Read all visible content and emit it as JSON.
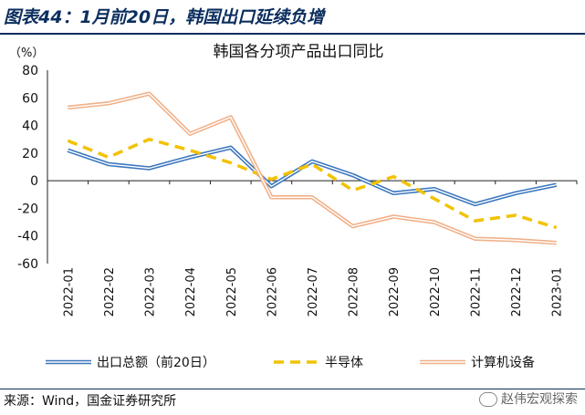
{
  "header": {
    "title": "图表44：1月前20日，韩国出口延续负增"
  },
  "footer": {
    "source": "来源：Wind，国金证券研究所",
    "watermark": "赵伟宏观探索"
  },
  "chart_data": {
    "type": "line",
    "title": "韩国各分项产品出口同比",
    "ylabel": "（%）",
    "xlabel": "",
    "ylim": [
      -60,
      80
    ],
    "yticks": [
      -60,
      -40,
      -20,
      0,
      20,
      40,
      60,
      80
    ],
    "grid": false,
    "legend": "bottom",
    "categories": [
      "2022-01",
      "2022-02",
      "2022-03",
      "2022-04",
      "2022-05",
      "2022-06",
      "2022-07",
      "2022-08",
      "2022-09",
      "2022-10",
      "2022-11",
      "2022-12",
      "2023-01"
    ],
    "x_points": [
      0,
      1,
      2,
      3,
      4,
      5,
      6,
      7,
      8,
      9,
      10,
      11,
      12,
      13
    ],
    "series": [
      {
        "name": "出口总额（前20日）",
        "color": "#3a76bd",
        "style": "double",
        "values": [
          22,
          12,
          9,
          17,
          24,
          -4,
          14,
          4,
          -9,
          -6,
          -17,
          -9,
          -3
        ],
        "x": [
          0,
          1,
          2,
          3,
          4,
          5,
          6,
          7,
          8,
          9,
          10,
          11,
          12
        ]
      },
      {
        "name": "半导体",
        "color": "#f2c200",
        "style": "dash",
        "values": [
          29,
          17,
          30,
          22,
          13,
          1,
          12,
          -7,
          3,
          -13,
          -29,
          -25,
          -34
        ],
        "x": [
          0,
          1,
          2,
          3,
          4,
          5,
          6,
          7,
          8,
          9,
          10,
          11,
          12
        ]
      },
      {
        "name": "计算机设备",
        "color": "#f0b088",
        "style": "double",
        "values": [
          53,
          56,
          63,
          34,
          46,
          -12,
          -12,
          -33,
          -26,
          -30,
          -42,
          -43,
          -45
        ],
        "x": [
          0,
          1,
          2,
          3,
          4,
          5,
          6,
          7,
          8,
          9,
          10,
          11,
          12
        ]
      }
    ]
  }
}
